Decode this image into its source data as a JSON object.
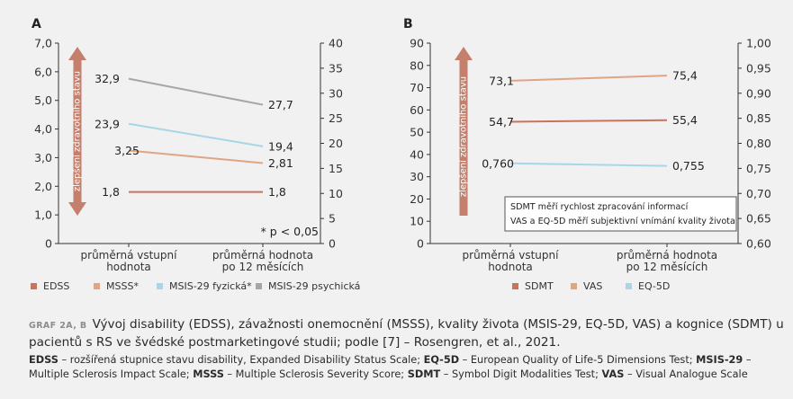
{
  "chart_data": [
    {
      "panel_label": "A",
      "type": "line",
      "categories": [
        "průměrná vstupní\nhodnota",
        "průměrná hodnota\npo 12 měsících"
      ],
      "left_axis": {
        "ylim": [
          0,
          7
        ],
        "ticks": [
          "0",
          "1,0",
          "2,0",
          "3,0",
          "4,0",
          "5,0",
          "6,0",
          "7,0"
        ]
      },
      "right_axis": {
        "ylim": [
          0,
          40
        ],
        "ticks": [
          "0",
          "5",
          "10",
          "15",
          "20",
          "25",
          "30",
          "35",
          "40"
        ]
      },
      "arrow_label": "zlepšení zdravotního stavu",
      "note": "* p < 0,05",
      "series": [
        {
          "name": "EDSS",
          "axis": "left",
          "values": [
            1.8,
            1.8
          ],
          "labels": [
            "1,8",
            "1,8"
          ],
          "color": "#c8745a"
        },
        {
          "name": "MSSS*",
          "axis": "left",
          "values": [
            3.25,
            2.81
          ],
          "labels": [
            "3,25",
            "2,81"
          ],
          "color": "#e0a582"
        },
        {
          "name": "MSIS-29 fyzická*",
          "axis": "right",
          "values": [
            23.9,
            19.4
          ],
          "labels": [
            "23,9",
            "19,4"
          ],
          "color": "#a8d6e6"
        },
        {
          "name": "MSIS-29 psychická",
          "axis": "right",
          "values": [
            32.9,
            27.7
          ],
          "labels": [
            "32,9",
            "27,7"
          ],
          "color": "#a6a6a6"
        }
      ]
    },
    {
      "panel_label": "B",
      "type": "line",
      "categories": [
        "průměrná vstupní\nhodnota",
        "průměrná hodnota\npo 12 měsících"
      ],
      "left_axis": {
        "ylim": [
          0,
          90
        ],
        "ticks": [
          "0",
          "10",
          "20",
          "30",
          "40",
          "50",
          "60",
          "70",
          "80",
          "90"
        ]
      },
      "right_axis": {
        "ylim": [
          0.6,
          1.0
        ],
        "ticks": [
          "0,60",
          "0,65",
          "0,70",
          "0,75",
          "0,80",
          "0,85",
          "0,90",
          "0,95",
          "1,00"
        ]
      },
      "arrow_label": "zlepšení zdravotního stavu",
      "notes": [
        "SDMT měří rychlost zpracování informací",
        "VAS a EQ-5D měří subjektivní vnímání kvality života"
      ],
      "series": [
        {
          "name": "SDMT",
          "axis": "left",
          "values": [
            54.7,
            55.4
          ],
          "labels": [
            "54,7",
            "55,4"
          ],
          "color": "#c8745a"
        },
        {
          "name": "VAS",
          "axis": "left",
          "values": [
            73.1,
            75.4
          ],
          "labels": [
            "73,1",
            "75,4"
          ],
          "color": "#e0a582"
        },
        {
          "name": "EQ-5D",
          "axis": "right",
          "values": [
            0.76,
            0.755
          ],
          "labels": [
            "0,760",
            "0,755"
          ],
          "color": "#a8d6e6"
        }
      ]
    }
  ],
  "caption": {
    "label": "GRAF 2A, B",
    "text": "Vývoj disability (EDSS), závažnosti onemocnění (MSSS), kvality života (MSIS-29, EQ-5D, VAS) a kognice (SDMT) u pacientů s RS ve švédské postmarketingové studii; podle [7] – Rosengren, et al., 2021."
  },
  "abbreviations": [
    {
      "abbr": "EDSS",
      "desc": "rozšířená stupnice stavu disability, Expanded Disability Status Scale;"
    },
    {
      "abbr": "EQ-5D",
      "desc": "European Quality of Life-5 Dimensions Test;"
    },
    {
      "abbr": "MSIS-29",
      "desc": "Multiple Sclerosis Impact Scale;"
    },
    {
      "abbr": "MSSS",
      "desc": "Multiple Sclerosis Severity Score;"
    },
    {
      "abbr": "SDMT",
      "desc": "Symbol Digit Modalities Test;"
    },
    {
      "abbr": "VAS",
      "desc": "Visual Analogue Scale"
    }
  ]
}
